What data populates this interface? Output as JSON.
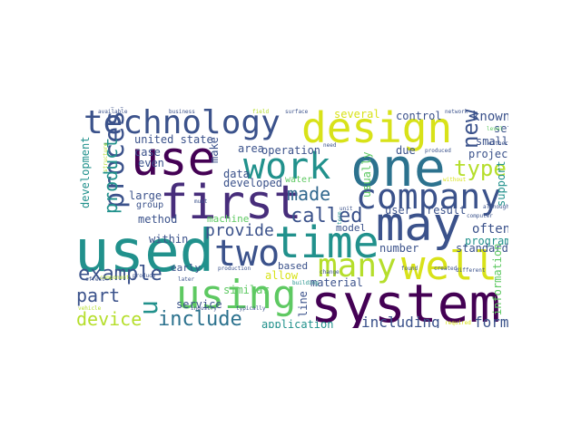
{
  "words": {
    "used": "used",
    "system": "system",
    "first": "first",
    "one": "one",
    "use": "use",
    "may": "may",
    "design": "design",
    "technology": "technology",
    "time": "time",
    "company": "company",
    "well": "well",
    "using": "using",
    "many": "many",
    "work": "work",
    "two": "two",
    "u": "u",
    "new": "new",
    "process": "process",
    "made": "made",
    "called": "called",
    "type": "type",
    "example": "example",
    "include": "include",
    "device": "device",
    "part": "part",
    "provide": "provide",
    "including": "including",
    "form": "form",
    "known": "known",
    "product": "product",
    "development": "development",
    "united_state": "united state",
    "control": "control",
    "several": "several",
    "set": "set",
    "small": "small",
    "project": "project",
    "often": "often",
    "program": "program",
    "standard": "standard",
    "support": "support",
    "information": "information",
    "result": "result",
    "number": "number",
    "user": "user",
    "model": "model",
    "usually": "usually",
    "due": "due",
    "operation": "operation",
    "make": "make",
    "area": "area",
    "water": "water",
    "data": "data",
    "developed": "developed",
    "case": "case",
    "even": "even",
    "large": "large",
    "group": "group",
    "method": "method",
    "machine": "machine",
    "within": "within",
    "service": "service",
    "similar": "similar",
    "early": "early",
    "based": "based",
    "allow": "allow",
    "material": "material",
    "line": "line",
    "application": "application",
    "available": "available",
    "business": "business",
    "field": "field",
    "surface": "surface",
    "network": "network",
    "need": "need",
    "term": "term",
    "produced": "produced",
    "without": "without",
    "either": "either",
    "level": "level",
    "structure": "structure",
    "must": "must",
    "building": "building",
    "unit": "unit",
    "computer": "computer",
    "although": "although",
    "production": "production",
    "change": "change",
    "found": "found",
    "created": "created",
    "different": "different",
    "produce": "produce",
    "component": "component",
    "effect": "effect",
    "later": "later",
    "industry": "industry",
    "typically": "typically",
    "required": "required",
    "vehicle": "vehicle"
  },
  "palette": {
    "deep_purple": "#440154",
    "purple": "#472d7b",
    "indigo": "#3b528b",
    "steel_blue": "#2c728e",
    "teal": "#21918c",
    "sea_green": "#28ae80",
    "green": "#5ec962",
    "lime": "#addc30",
    "yellow": "#fde725"
  }
}
